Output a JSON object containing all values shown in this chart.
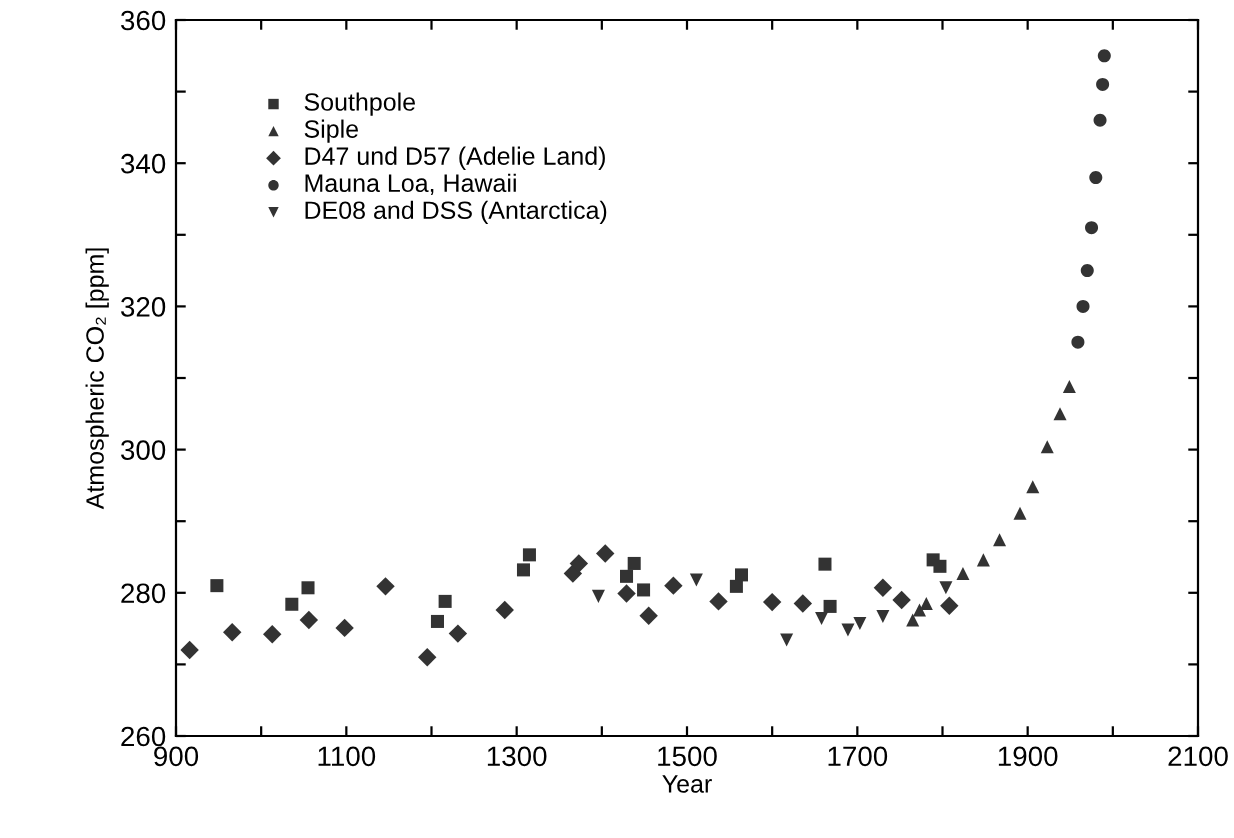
{
  "chart_data": {
    "type": "scatter",
    "xlabel": "Year",
    "ylabel": "Atmospheric CO₂ [ppm]",
    "xlim": [
      900,
      2100
    ],
    "ylim": [
      260,
      360
    ],
    "xticks": [
      900,
      {
        "value": 1000,
        "label": null
      },
      1100,
      {
        "value": 1200,
        "label": null
      },
      1300,
      {
        "value": 1400,
        "label": null
      },
      1500,
      {
        "value": 1600,
        "label": null
      },
      1700,
      {
        "value": 1800,
        "label": null
      },
      1900,
      {
        "value": 2000,
        "label": null
      },
      2100
    ],
    "yticks": [
      260,
      {
        "value": 270,
        "label": null
      },
      280,
      {
        "value": 290,
        "label": null
      },
      300,
      {
        "value": 310,
        "label": null
      },
      320,
      {
        "value": 330,
        "label": null
      },
      340,
      {
        "value": 350,
        "label": null
      },
      360
    ],
    "legend": "top left",
    "grid": false,
    "series": [
      {
        "name": "Southpole",
        "marker": "square",
        "color": "#333333",
        "x": [
          948,
          1036,
          1055,
          1207,
          1216,
          1315,
          1308,
          1438,
          1429,
          1449,
          1564,
          1558,
          1662,
          1668,
          1789,
          1797
        ],
        "values": [
          281,
          278.4,
          280.7,
          276,
          278.8,
          285.3,
          283.2,
          284.1,
          282.3,
          280.4,
          282.5,
          280.9,
          284,
          278.1,
          284.6,
          283.7
        ]
      },
      {
        "name": "Siple",
        "marker": "triangle",
        "color": "#333333",
        "x": [
          1765,
          1773,
          1781,
          1824,
          1848,
          1867,
          1891,
          1906,
          1923,
          1938,
          1949
        ],
        "values": [
          276.2,
          277.6,
          278.5,
          282.7,
          284.6,
          287.4,
          291.1,
          294.8,
          300.4,
          305,
          308.8
        ]
      },
      {
        "name": "D47 und D57 (Adelie Land)",
        "marker": "diamond",
        "color": "#333333",
        "x": [
          916,
          966,
          1013,
          1056,
          1098,
          1146,
          1195,
          1231,
          1286,
          1366,
          1373,
          1404,
          1429,
          1455,
          1484,
          1537,
          1600,
          1636,
          1730,
          1752,
          1808
        ],
        "values": [
          272,
          274.5,
          274.2,
          276.2,
          275.1,
          280.9,
          271,
          274.3,
          277.6,
          282.7,
          284.1,
          285.5,
          279.9,
          276.8,
          281,
          278.8,
          278.7,
          278.5,
          280.7,
          279,
          278.2
        ]
      },
      {
        "name": "Mauna Loa, Hawaii",
        "marker": "circle",
        "color": "#333333",
        "x": [
          1959,
          1965,
          1970,
          1975,
          1980,
          1985,
          1988,
          1990
        ],
        "values": [
          315,
          320,
          325,
          331,
          338,
          346,
          351,
          355
        ]
      },
      {
        "name": "DE08 and DSS (Antarctica)",
        "marker": "triangle_down",
        "color": "#333333",
        "x": [
          1396,
          1511,
          1617,
          1658,
          1689,
          1703,
          1730,
          1804
        ],
        "values": [
          279.5,
          281.8,
          273.4,
          276.4,
          274.8,
          275.7,
          276.7,
          280.7
        ]
      }
    ]
  }
}
